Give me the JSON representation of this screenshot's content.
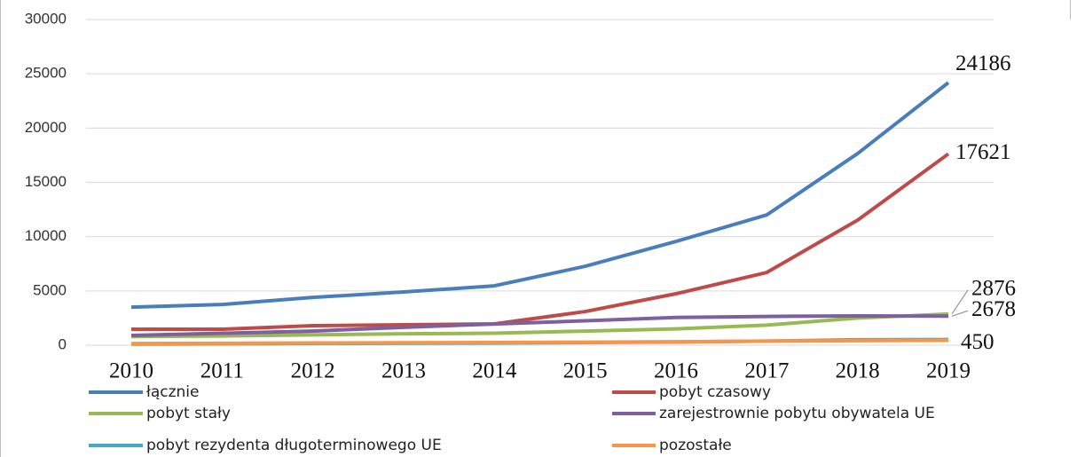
{
  "chart_data": {
    "type": "line",
    "categories": [
      "2010",
      "2011",
      "2012",
      "2013",
      "2014",
      "2015",
      "2016",
      "2017",
      "2018",
      "2019"
    ],
    "series": [
      {
        "name": "łącznie",
        "color": "#4a7ebb",
        "values": [
          3500,
          3750,
          4400,
          4900,
          5470,
          7270,
          9560,
          12000,
          17650,
          24186
        ],
        "data_label": true
      },
      {
        "name": "pobyt czasowy",
        "color": "#be4b48",
        "values": [
          1470,
          1470,
          1800,
          1880,
          1960,
          3100,
          4740,
          6700,
          11520,
          17621
        ],
        "data_label": true
      },
      {
        "name": "pobyt stały",
        "color": "#98b954",
        "values": [
          800,
          850,
          950,
          1050,
          1100,
          1300,
          1500,
          1850,
          2500,
          2876
        ],
        "data_label": true
      },
      {
        "name": "zarejestrownie pobytu obywatela UE",
        "color": "#7d60a0",
        "values": [
          900,
          1100,
          1300,
          1650,
          1950,
          2250,
          2550,
          2650,
          2700,
          2678
        ],
        "data_label": true
      },
      {
        "name": "pobyt rezydenta długoterminowego UE",
        "color": "#46aac5",
        "values": [
          100,
          120,
          150,
          180,
          200,
          250,
          300,
          380,
          500,
          520
        ],
        "data_label": false
      },
      {
        "name": "pozostałe",
        "color": "#f79646",
        "values": [
          150,
          170,
          200,
          220,
          250,
          280,
          320,
          380,
          420,
          450
        ],
        "data_label": true
      }
    ],
    "ylim": [
      0,
      30000
    ],
    "yticks": [
      0,
      5000,
      10000,
      15000,
      20000,
      25000,
      30000
    ],
    "grid": true,
    "legend": "bottom"
  }
}
